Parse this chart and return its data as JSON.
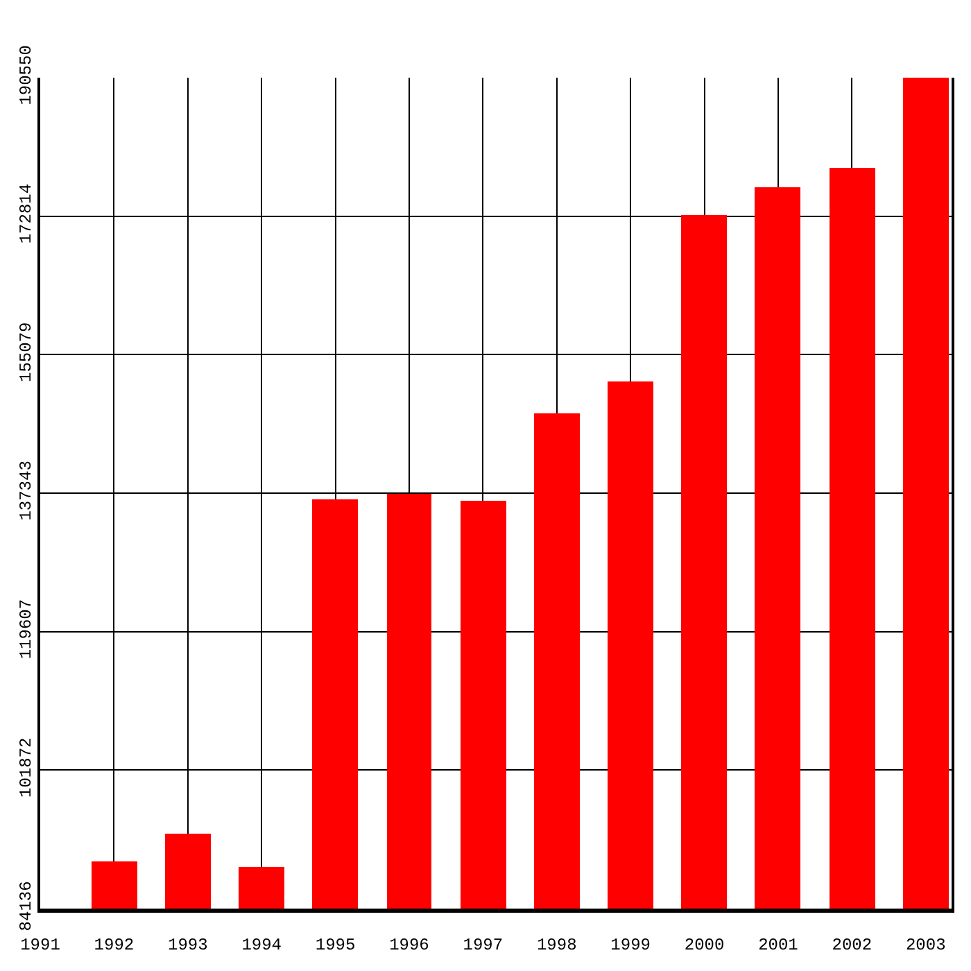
{
  "chart_data": {
    "type": "bar",
    "categories": [
      "1991",
      "1992",
      "1993",
      "1994",
      "1995",
      "1996",
      "1997",
      "1998",
      "1999",
      "2000",
      "2001",
      "2002",
      "2003"
    ],
    "values": [
      84136,
      90100,
      93700,
      89400,
      136600,
      137300,
      136400,
      147500,
      151700,
      173000,
      176600,
      179000,
      190550
    ],
    "color": "#ff0000",
    "ylim": [
      84136,
      190550
    ],
    "yticks": [
      84136,
      101872,
      119607,
      137343,
      155079,
      172814,
      190550
    ],
    "grid": true
  }
}
